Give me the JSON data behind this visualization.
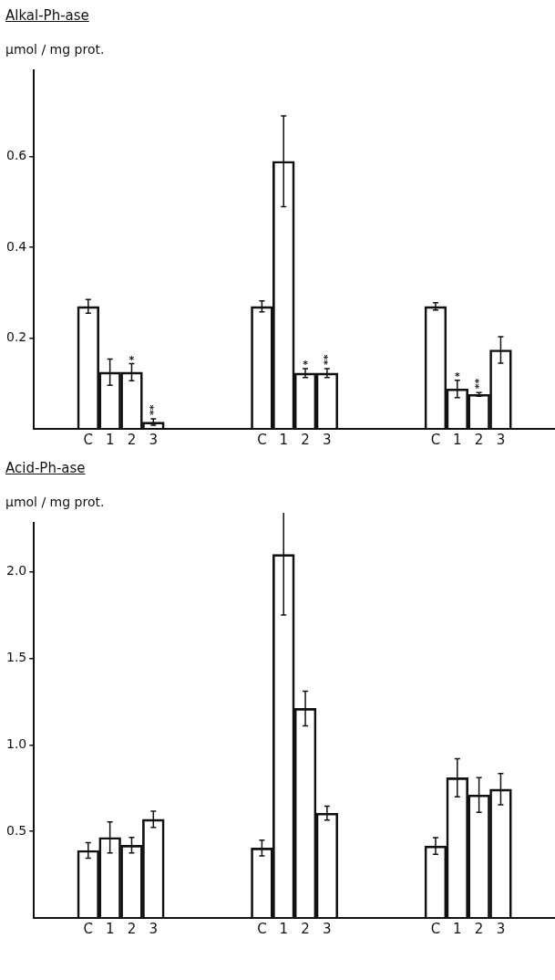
{
  "chart_data": [
    {
      "type": "bar",
      "title": "Alkal-Ph-ase",
      "ylabel": "µmol / mg prot.",
      "categories": [
        null,
        null,
        "C",
        "1",
        "2",
        "3",
        null,
        null,
        null,
        null,
        "C",
        "1",
        "2",
        "3",
        null,
        null,
        null,
        null,
        "C",
        "1",
        "2",
        "3",
        null,
        null
      ],
      "series": [
        {
          "color": "#111111",
          "values": [
            null,
            null,
            0.27,
            0.125,
            0.125,
            0.015,
            null,
            null,
            null,
            null,
            0.27,
            0.59,
            0.123,
            0.123,
            null,
            null,
            null,
            null,
            0.27,
            0.088,
            0.076,
            0.174,
            null,
            null
          ],
          "errors": [
            null,
            null,
            0.015,
            0.029,
            0.019,
            0.007,
            null,
            null,
            null,
            null,
            0.012,
            0.1,
            0.01,
            0.01,
            null,
            null,
            null,
            null,
            0.008,
            0.019,
            0.004,
            0.029,
            null,
            null
          ],
          "value_labels": [
            null,
            null,
            null,
            null,
            "*",
            "**",
            null,
            null,
            null,
            null,
            null,
            null,
            "*",
            "**",
            null,
            null,
            null,
            null,
            null,
            "*",
            "**",
            null,
            null,
            null
          ]
        }
      ],
      "ylim": [
        0,
        0.79
      ],
      "yticks": [
        0.2,
        0.4,
        0.6
      ],
      "legend": false,
      "grid": false
    },
    {
      "type": "bar",
      "title": "Acid-Ph-ase",
      "ylabel": "µmol / mg prot.",
      "categories": [
        null,
        null,
        "C",
        "1",
        "2",
        "3",
        null,
        null,
        null,
        null,
        "C",
        "1",
        "2",
        "3",
        null,
        null,
        null,
        null,
        "C",
        "1",
        "2",
        "3",
        null,
        null
      ],
      "series": [
        {
          "color": "#111111",
          "values": [
            null,
            null,
            0.39,
            0.465,
            0.42,
            0.57,
            null,
            null,
            null,
            null,
            0.404,
            2.1,
            1.21,
            0.605,
            null,
            null,
            null,
            null,
            0.416,
            0.81,
            0.71,
            0.744,
            null,
            null
          ],
          "errors": [
            null,
            null,
            0.045,
            0.09,
            0.045,
            0.047,
            null,
            null,
            null,
            null,
            0.045,
            0.35,
            0.1,
            0.04,
            null,
            null,
            null,
            null,
            0.048,
            0.11,
            0.1,
            0.09,
            null,
            null
          ]
        }
      ],
      "ylim": [
        0,
        2.28
      ],
      "yticks": [
        0.5,
        {
          "value": 1,
          "label": "1.0"
        },
        1.5,
        {
          "value": 2,
          "label": "2.0"
        }
      ],
      "legend": false,
      "grid": false
    }
  ]
}
